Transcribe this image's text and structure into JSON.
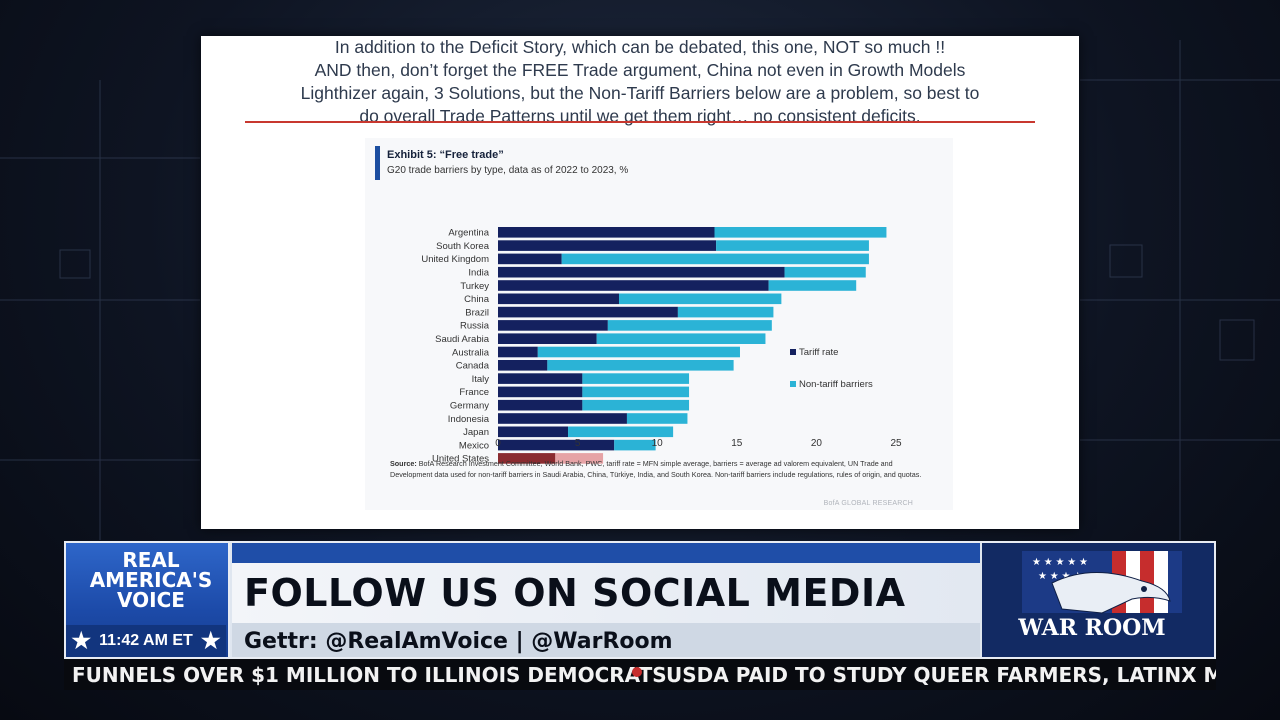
{
  "slide": {
    "lines": [
      "In addition to the Deficit Story, which can be debated, this one, NOT so much !!",
      "AND then, don’t forget the FREE Trade argument, China not even in Growth Models",
      "Lighthizer again, 3 Solutions, but the Non-Tariff Barriers below are a problem, so best to",
      "do overall Trade Patterns until we get them right… no consistent deficits."
    ]
  },
  "exhibit": {
    "title": "Exhibit 5: “Free trade”",
    "subtitle": "G20 trade barriers by type, data as of 2022 to 2023, %",
    "source_label": "Source:",
    "source_text": " BofA Research Investment Committee, World Bank, PWC, tariff rate = MFN simple average, barriers = average ad valorem equivalent, UN Trade and Development data used for non-tariff barriers in Saudi Arabia, China, Türkiye, India, and South Korea. Non-tariff barriers include regulations, rules of origin, and quotas.",
    "watermark": "BofA GLOBAL RESEARCH"
  },
  "chart_data": {
    "type": "bar",
    "orientation": "horizontal",
    "stacked": true,
    "title": "Exhibit 5: “Free trade”",
    "subtitle": "G20 trade barriers by type, data as of 2022 to 2023, %",
    "categories": [
      "Argentina",
      "South Korea",
      "United Kingdom",
      "India",
      "Turkey",
      "China",
      "Brazil",
      "Russia",
      "Saudi Arabia",
      "Australia",
      "Canada",
      "Italy",
      "France",
      "Germany",
      "Indonesia",
      "Japan",
      "Mexico",
      "United States"
    ],
    "series": [
      {
        "name": "Tariff rate",
        "color": "#14215f",
        "values": [
          13.6,
          13.7,
          4.0,
          18.0,
          17.0,
          7.6,
          11.3,
          6.9,
          6.2,
          2.5,
          3.1,
          5.3,
          5.3,
          5.3,
          8.1,
          4.4,
          7.3,
          3.6
        ]
      },
      {
        "name": "Non-tariff barriers",
        "color": "#2bb3d6",
        "values": [
          10.8,
          9.6,
          19.3,
          5.1,
          5.5,
          10.2,
          6.0,
          10.3,
          10.6,
          12.7,
          11.7,
          6.7,
          6.7,
          6.7,
          3.8,
          6.6,
          2.6,
          3.0
        ]
      }
    ],
    "highlight": {
      "category": "United States",
      "colors": [
        "#8a2b30",
        "#e6a3a6"
      ]
    },
    "xlim": [
      0,
      25
    ],
    "xticks": [
      "0",
      "5",
      "10",
      "15",
      "20",
      "25"
    ],
    "legend_position": "right"
  },
  "lower_third": {
    "network_line1": "REAL",
    "network_line2": "AMERICA'S",
    "network_line3": "VOICE",
    "time": "11:42 AM ET",
    "headline": "FOLLOW US ON SOCIAL MEDIA",
    "subline": "Gettr: @RealAmVoice  |  @WarRoom",
    "show_logo": "WAR ROOM"
  },
  "ticker": {
    "items": [
      "FUNNELS OVER $1 MILLION TO ILLINOIS DEMOCRATS",
      "USDA PAID TO STUDY QUEER FARMERS, LATINX MAS"
    ]
  },
  "colors": {
    "tariff": "#14215f",
    "non_tariff": "#2bb3d6",
    "us_tariff": "#8a2b30",
    "us_non_tariff": "#e6a3a6",
    "network_blue": "#1f4ea8",
    "rule_red": "#c8382f"
  }
}
